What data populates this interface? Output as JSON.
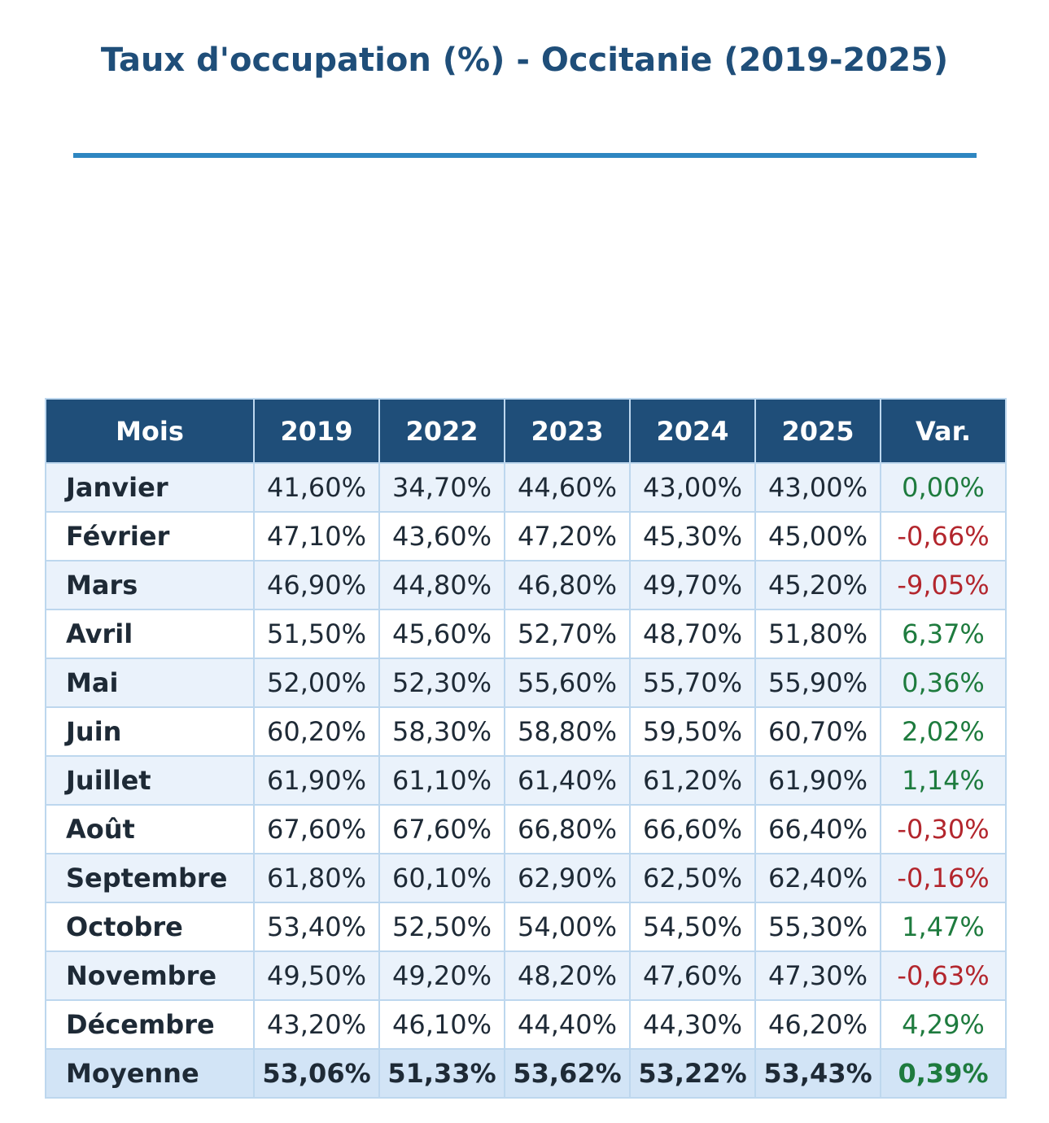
{
  "title": "Taux d'occupation (%) - Occitanie (2019-2025)",
  "colors": {
    "header_bg": "#1f4e79",
    "title": "#1f4e79",
    "rule": "#2e86c1",
    "positive": "#1e7b3e",
    "negative": "#b3262d",
    "row_alt": "#eaf2fb",
    "average_row": "#d2e4f6"
  },
  "chart_data": {
    "type": "table",
    "title": "Taux d'occupation (%) - Occitanie (2019-2025)",
    "columns": [
      "Mois",
      "2019",
      "2022",
      "2023",
      "2024",
      "2025",
      "Var."
    ],
    "rows": [
      {
        "month": "Janvier",
        "values": [
          "41,60%",
          "34,70%",
          "44,60%",
          "43,00%",
          "43,00%"
        ],
        "var": "0,00%",
        "var_sign": "pos"
      },
      {
        "month": "Février",
        "values": [
          "47,10%",
          "43,60%",
          "47,20%",
          "45,30%",
          "45,00%"
        ],
        "var": "-0,66%",
        "var_sign": "neg"
      },
      {
        "month": "Mars",
        "values": [
          "46,90%",
          "44,80%",
          "46,80%",
          "49,70%",
          "45,20%"
        ],
        "var": "-9,05%",
        "var_sign": "neg"
      },
      {
        "month": "Avril",
        "values": [
          "51,50%",
          "45,60%",
          "52,70%",
          "48,70%",
          "51,80%"
        ],
        "var": "6,37%",
        "var_sign": "pos"
      },
      {
        "month": "Mai",
        "values": [
          "52,00%",
          "52,30%",
          "55,60%",
          "55,70%",
          "55,90%"
        ],
        "var": "0,36%",
        "var_sign": "pos"
      },
      {
        "month": "Juin",
        "values": [
          "60,20%",
          "58,30%",
          "58,80%",
          "59,50%",
          "60,70%"
        ],
        "var": "2,02%",
        "var_sign": "pos"
      },
      {
        "month": "Juillet",
        "values": [
          "61,90%",
          "61,10%",
          "61,40%",
          "61,20%",
          "61,90%"
        ],
        "var": "1,14%",
        "var_sign": "pos"
      },
      {
        "month": "Août",
        "values": [
          "67,60%",
          "67,60%",
          "66,80%",
          "66,60%",
          "66,40%"
        ],
        "var": "-0,30%",
        "var_sign": "neg"
      },
      {
        "month": "Septembre",
        "values": [
          "61,80%",
          "60,10%",
          "62,90%",
          "62,50%",
          "62,40%"
        ],
        "var": "-0,16%",
        "var_sign": "neg"
      },
      {
        "month": "Octobre",
        "values": [
          "53,40%",
          "52,50%",
          "54,00%",
          "54,50%",
          "55,30%"
        ],
        "var": "1,47%",
        "var_sign": "pos"
      },
      {
        "month": "Novembre",
        "values": [
          "49,50%",
          "49,20%",
          "48,20%",
          "47,60%",
          "47,30%"
        ],
        "var": "-0,63%",
        "var_sign": "neg"
      },
      {
        "month": "Décembre",
        "values": [
          "43,20%",
          "46,10%",
          "44,40%",
          "44,30%",
          "46,20%"
        ],
        "var": "4,29%",
        "var_sign": "pos"
      }
    ],
    "average": {
      "month": "Moyenne",
      "values": [
        "53,06%",
        "51,33%",
        "53,62%",
        "53,22%",
        "53,43%"
      ],
      "var": "0,39%",
      "var_sign": "pos"
    }
  }
}
